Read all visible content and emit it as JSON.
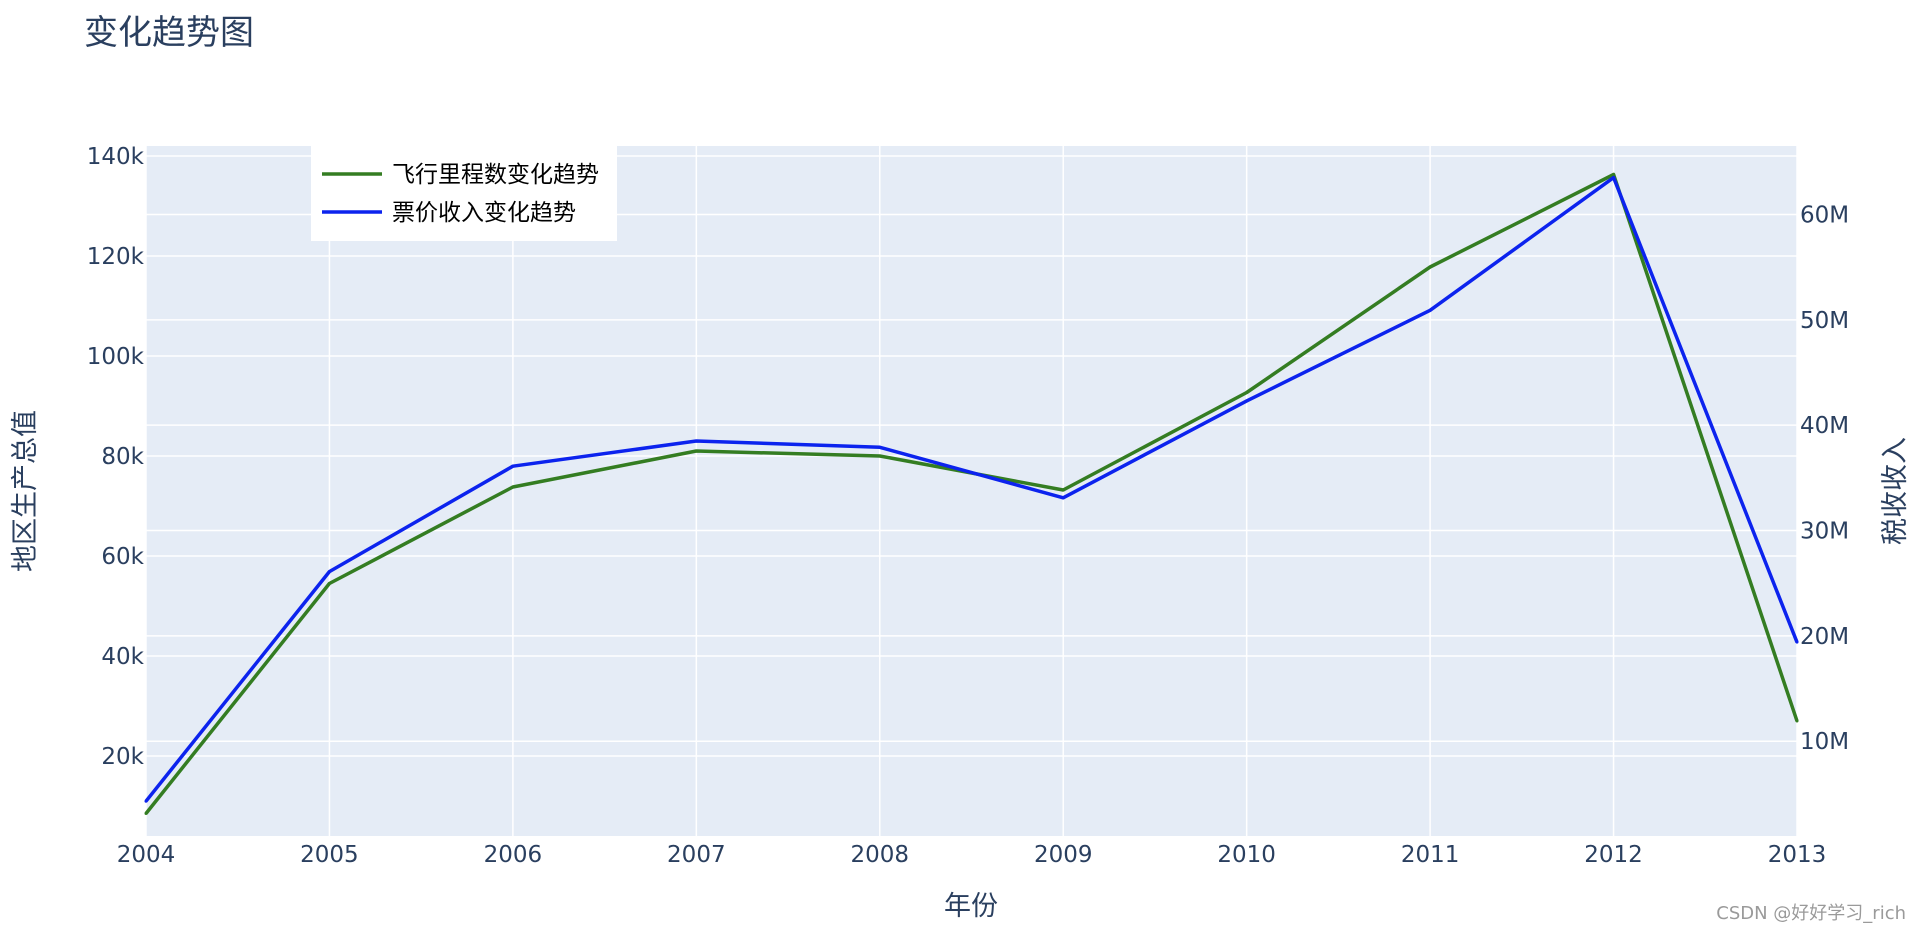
{
  "watermark": "CSDN @好好学习_rich",
  "colors": {
    "plot_bg": "#e5ecf6",
    "grid": "#ffffff",
    "text": "#2a3f5f"
  },
  "chart_data": {
    "type": "line",
    "title": "变化趋势图",
    "xlabel": "年份",
    "ylabel": "地区生产总值",
    "y2label": "税收收入",
    "x": [
      2004,
      2005,
      2006,
      2007,
      2008,
      2009,
      2010,
      2011,
      2012,
      2013
    ],
    "xlim": [
      2004,
      2013
    ],
    "xticks": [
      "2004",
      "2005",
      "2006",
      "2007",
      "2008",
      "2009",
      "2010",
      "2011",
      "2012",
      "2013"
    ],
    "ylim": [
      4000,
      142000
    ],
    "yticks": [
      20000,
      40000,
      60000,
      80000,
      100000,
      120000,
      140000
    ],
    "yticklabels": [
      "20k",
      "40k",
      "60k",
      "80k",
      "100k",
      "120k",
      "140k"
    ],
    "y2lim": [
      1000000,
      66500000
    ],
    "y2ticks": [
      10000000,
      20000000,
      30000000,
      40000000,
      50000000,
      60000000
    ],
    "y2ticklabels": [
      "10M",
      "20M",
      "30M",
      "40M",
      "50M",
      "60M"
    ],
    "grid": true,
    "legend_position": "top-left",
    "series": [
      {
        "name": "飞行里程数变化趋势",
        "axis": "y",
        "color": "#347d22",
        "values": [
          8500,
          54500,
          73800,
          81000,
          80000,
          73200,
          92700,
          117800,
          136300,
          27000
        ]
      },
      {
        "name": "票价收入变化趋势",
        "axis": "y2",
        "color": "#0c23ee",
        "values": [
          4300000,
          26100000,
          36100000,
          38500000,
          37900000,
          33100000,
          42300000,
          50900000,
          63500000,
          19400000
        ]
      }
    ]
  }
}
